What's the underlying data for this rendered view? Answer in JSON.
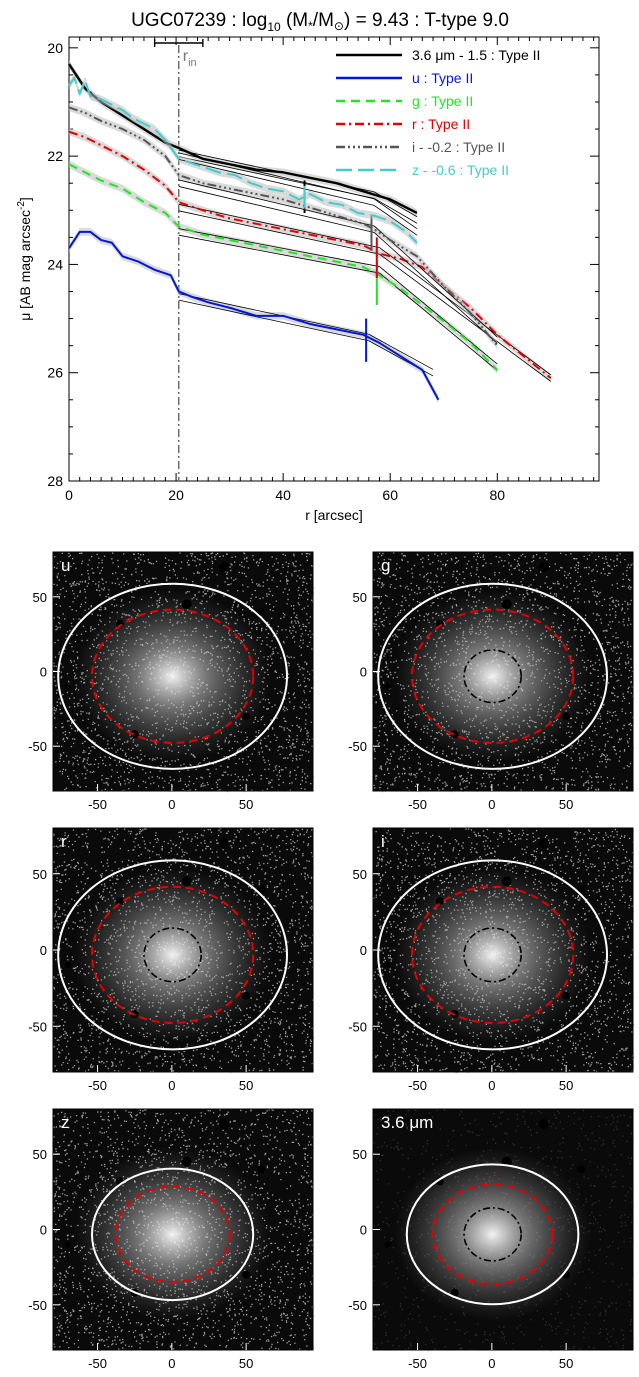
{
  "chart_data": [
    {
      "type": "line",
      "title_parts": {
        "pre": "UGC07239 : log",
        "sub": "10",
        "mid": " (M",
        "mass_symbol": "*",
        "slash": "/M",
        "sun_symbol": "⊙",
        "post": ") = 9.43 : T-type 9.0"
      },
      "xlabel": "r [arcsec]",
      "ylabel": "μ [AB mag arcsec",
      "ylabel_sup": "-2",
      "ylabel_close": "]",
      "xlim": [
        0,
        99
      ],
      "ylim": [
        28,
        19.8
      ],
      "y_inverted": true,
      "xticks": [
        0,
        20,
        40,
        60,
        80
      ],
      "yticks": [
        20,
        22,
        24,
        26,
        28
      ],
      "r_in_label": "r",
      "r_in_sub": "in",
      "r_in": 20.5,
      "r_in_errorbar": [
        16,
        25
      ],
      "legend_position": "top-right",
      "legend": [
        {
          "text": "3.6 μm - 1.5 : Type II",
          "color": "#000000",
          "dash": ""
        },
        {
          "text": "u : Type II",
          "color": "#0018d8",
          "dash": ""
        },
        {
          "text": "g : Type II",
          "color": "#22e422",
          "dash": "9,6"
        },
        {
          "text": "r : Type II",
          "color": "#e40000",
          "dash": "9,4,2,4"
        },
        {
          "text": "i - -0.2 : Type II",
          "color": "#555555",
          "dash": "9,3,2,3,2,3,2,3"
        },
        {
          "text": "z - -0.6 : Type II",
          "color": "#44cccc",
          "dash": "16,6"
        }
      ],
      "series": [
        {
          "name": "3.6 μm",
          "color": "#000000",
          "dash": "",
          "width": 2.4,
          "x": [
            0,
            3,
            6,
            10,
            14,
            18,
            20.5,
            25,
            30,
            35,
            40,
            45,
            50,
            55,
            60,
            65
          ],
          "y": [
            20.3,
            20.75,
            21.0,
            21.25,
            21.5,
            21.75,
            21.85,
            22.05,
            22.15,
            22.25,
            22.3,
            22.4,
            22.5,
            22.65,
            22.8,
            23.05
          ],
          "fit_inner": [
            [
              20.5,
              21.95
            ],
            [
              57,
              22.72
            ]
          ],
          "fit_outer": [
            [
              57,
              22.72
            ],
            [
              65,
              23.18
            ]
          ],
          "break_r": 44,
          "break_mu": [
            22.45,
            23.05
          ]
        },
        {
          "name": "u",
          "color": "#0018d8",
          "dash": "",
          "width": 2.0,
          "x": [
            0,
            2,
            4,
            6,
            8,
            10,
            13,
            16,
            19,
            20.5,
            23,
            26,
            30,
            35,
            40,
            45,
            50,
            55,
            58,
            62,
            66,
            69
          ],
          "y": [
            23.7,
            23.4,
            23.4,
            23.55,
            23.6,
            23.85,
            23.95,
            24.1,
            24.2,
            24.5,
            24.6,
            24.7,
            24.8,
            24.95,
            24.95,
            25.1,
            25.2,
            25.3,
            25.45,
            25.7,
            25.95,
            26.5
          ],
          "fit_inner": [
            [
              20.5,
              24.6
            ],
            [
              56,
              25.35
            ]
          ],
          "fit_outer": [
            [
              56,
              25.35
            ],
            [
              68,
              26.0
            ]
          ],
          "break_r": 55.5,
          "break_mu": [
            25.0,
            25.8
          ]
        },
        {
          "name": "g",
          "color": "#22e422",
          "dash": "9,6",
          "width": 2.0,
          "x": [
            0,
            3,
            6,
            10,
            14,
            18,
            20.5,
            25,
            30,
            35,
            40,
            45,
            50,
            55,
            58,
            62,
            66,
            70,
            75,
            80
          ],
          "y": [
            22.15,
            22.3,
            22.45,
            22.6,
            22.85,
            23.05,
            23.3,
            23.45,
            23.55,
            23.65,
            23.75,
            23.85,
            23.95,
            24.05,
            24.2,
            24.45,
            24.75,
            25.05,
            25.45,
            25.95
          ],
          "fit_inner": [
            [
              20.5,
              23.4
            ],
            [
              58,
              24.1
            ]
          ],
          "fit_outer": [
            [
              58,
              24.1
            ],
            [
              80,
              25.9
            ]
          ],
          "break_r": 57.5,
          "break_mu": [
            23.95,
            24.75
          ]
        },
        {
          "name": "r",
          "color": "#e40000",
          "dash": "9,4,2,4",
          "width": 2.0,
          "x": [
            0,
            3,
            6,
            10,
            14,
            18,
            20.5,
            25,
            30,
            35,
            40,
            45,
            50,
            55,
            58,
            62,
            66,
            70,
            75,
            80,
            85,
            90
          ],
          "y": [
            21.55,
            21.65,
            21.8,
            22.0,
            22.25,
            22.55,
            22.85,
            23.0,
            23.15,
            23.25,
            23.35,
            23.45,
            23.55,
            23.65,
            23.8,
            23.9,
            24.05,
            24.4,
            24.8,
            25.3,
            25.7,
            26.1
          ],
          "fit_inner": [
            [
              20.5,
              22.95
            ],
            [
              58,
              23.75
            ]
          ],
          "fit_outer": [
            [
              58,
              23.75
            ],
            [
              90,
              26.1
            ]
          ],
          "break_r": 57.5,
          "break_mu": [
            23.5,
            24.25
          ]
        },
        {
          "name": "i - -0.2",
          "color": "#555555",
          "dash": "9,3,2,3,2,3,2,3",
          "width": 2.0,
          "x": [
            0,
            3,
            6,
            10,
            14,
            18,
            20.5,
            25,
            30,
            35,
            40,
            45,
            50,
            55,
            57,
            60,
            65,
            70,
            75,
            80
          ],
          "y": [
            21.1,
            21.2,
            21.35,
            21.5,
            21.7,
            22.0,
            22.35,
            22.5,
            22.6,
            22.7,
            22.8,
            22.95,
            23.1,
            23.25,
            23.35,
            23.55,
            23.85,
            24.4,
            24.9,
            25.5
          ],
          "fit_inner": [
            [
              20.5,
              22.5
            ],
            [
              57,
              23.35
            ]
          ],
          "fit_outer": [
            [
              57,
              23.35
            ],
            [
              80,
              25.4
            ]
          ],
          "break_r": 56.5,
          "break_mu": [
            23.1,
            23.75
          ]
        },
        {
          "name": "z - -0.6",
          "color": "#44cccc",
          "dash": "16,6",
          "width": 2.0,
          "x": [
            0,
            1,
            2,
            3,
            4,
            6,
            8,
            10,
            12,
            14,
            16,
            18,
            20.5,
            22,
            25,
            28,
            31,
            34,
            37,
            40,
            43,
            45,
            48,
            51,
            54,
            57,
            60,
            63,
            65
          ],
          "y": [
            20.7,
            20.55,
            20.85,
            20.6,
            20.9,
            20.95,
            21.05,
            21.15,
            21.3,
            21.4,
            21.5,
            21.7,
            22.05,
            22.1,
            22.2,
            22.3,
            22.35,
            22.5,
            22.6,
            22.65,
            22.8,
            22.7,
            22.85,
            22.9,
            23.05,
            23.1,
            23.2,
            23.4,
            23.6
          ],
          "fit_inner": [
            [
              20.5,
              22.0
            ],
            [
              57,
              22.85
            ]
          ],
          "fit_outer": [
            [
              57,
              22.85
            ],
            [
              65,
              23.4
            ]
          ],
          "break_r": 44,
          "break_mu": [
            22.55,
            22.95
          ]
        }
      ]
    },
    {
      "type": "heatmap",
      "panels": [
        {
          "label": "u",
          "xticks": [
            -50,
            0,
            50
          ],
          "yticks": [
            50,
            0,
            -50
          ],
          "dark": true
        },
        {
          "label": "g",
          "xticks": [
            -50,
            0,
            50
          ],
          "yticks": [
            50,
            0,
            -50
          ],
          "dark": true
        },
        {
          "label": "r",
          "xticks": [
            -50,
            0,
            50
          ],
          "yticks": [
            50,
            0,
            -50
          ],
          "dark": true
        },
        {
          "label": "i",
          "xticks": [
            -50,
            0,
            50
          ],
          "yticks": [
            50,
            0,
            -50
          ],
          "dark": true
        },
        {
          "label": "z",
          "xticks": [
            -50,
            0,
            50
          ],
          "yticks": [
            50,
            0,
            -50
          ],
          "dark": true
        },
        {
          "label": "3.6 μm",
          "xticks": [
            -50,
            0,
            50
          ],
          "yticks": [
            50,
            0,
            -50
          ],
          "dark": true
        }
      ],
      "legend_colors": {
        "outer_ellipse": "#ffffff",
        "break_ellipse": "#e40000",
        "inner_ellipse": "#000000"
      }
    }
  ]
}
